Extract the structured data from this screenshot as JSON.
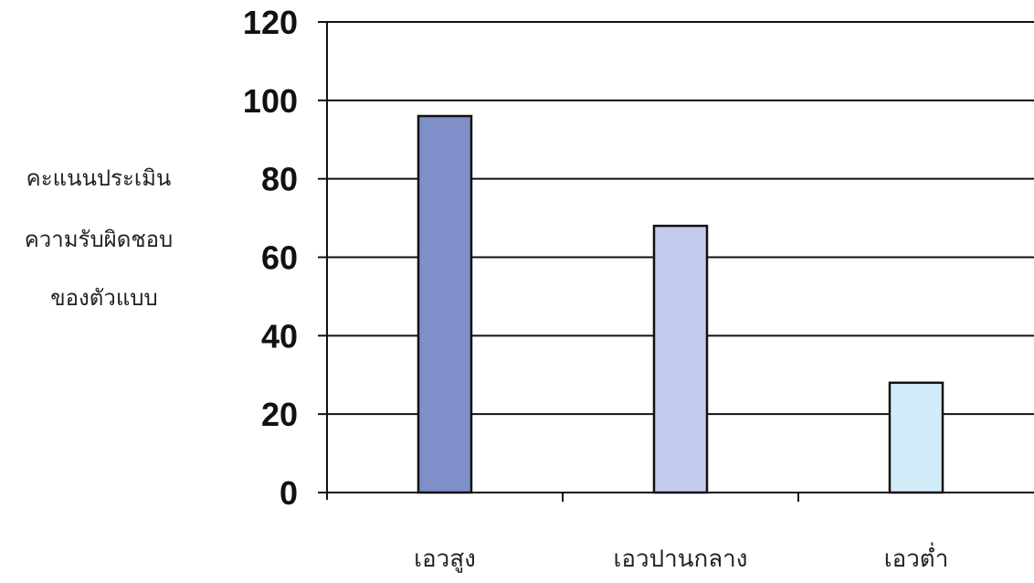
{
  "chart_data": {
    "type": "bar",
    "categories": [
      "เอวสูง",
      "เอวปานกลาง",
      "เอวต่ำ"
    ],
    "values": [
      96,
      68,
      28
    ],
    "ylabel_lines": [
      "คะแนนประเมิน",
      "ความรับผิดชอบ",
      "ของตัวแบบ"
    ],
    "ylim": [
      0,
      120
    ],
    "yticks": [
      0,
      20,
      40,
      60,
      80,
      100,
      120
    ],
    "grid": true,
    "legend": "none",
    "bar_colors": [
      "#7f8fc9",
      "#c3cbee",
      "#d3ecfa"
    ]
  }
}
